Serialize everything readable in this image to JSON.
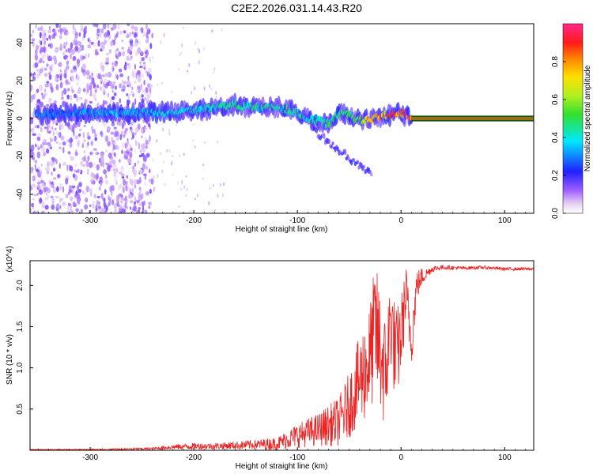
{
  "title": "C2E2.2026.031.14.43.R20",
  "colors": {
    "snr_line": "#ee2222",
    "band_center": "#ff3b1f",
    "band_edge": "#00c400",
    "scatter": "#9a4dff"
  },
  "chart_data": [
    {
      "type": "heatmap",
      "name": "spectrogram",
      "xlabel": "Height of straight line (km)",
      "ylabel": "Frequency (Hz)",
      "xlim": [
        -358,
        128
      ],
      "ylim": [
        -50,
        50
      ],
      "xticks": [
        -300,
        -200,
        -100,
        0,
        100
      ],
      "yticks": [
        -40,
        -20,
        0,
        20,
        40
      ],
      "grid": false,
      "colorbar": {
        "label": "Normalized spectral amplitude",
        "range": [
          0,
          1
        ],
        "ticks": [
          "0.0",
          "0.2",
          "0.4",
          "0.6",
          "0.8"
        ],
        "colormap": "rainbow (white-violet-blue-cyan-green-yellow-orange-red-magenta)"
      },
      "ridge": {
        "x": [
          -350,
          -320,
          -290,
          -260,
          -230,
          -200,
          -180,
          -160,
          -140,
          -120,
          -100,
          -90,
          -80,
          -70,
          -60,
          -50,
          -40,
          -30,
          -20,
          -10,
          0,
          10,
          50,
          100,
          128
        ],
        "frequency": [
          2,
          3,
          3,
          3,
          3,
          4,
          6,
          7,
          6,
          6,
          3,
          0,
          -1,
          -3,
          3,
          2,
          -1,
          0,
          1,
          2,
          3,
          0,
          0,
          0,
          0
        ],
        "amplitude": [
          0.3,
          0.3,
          0.35,
          0.35,
          0.4,
          0.4,
          0.45,
          0.45,
          0.45,
          0.45,
          0.45,
          0.4,
          0.4,
          0.45,
          0.5,
          0.5,
          0.55,
          0.7,
          0.85,
          0.85,
          0.9,
          1.0,
          1.0,
          1.0,
          1.0
        ]
      },
      "noise_region": {
        "x_from": -358,
        "x_to": -240,
        "frequency_range": [
          -50,
          50
        ],
        "amplitude": "low (0.0-0.1)"
      },
      "tone": {
        "x_from": 10,
        "x_to": 128,
        "frequency": 0,
        "amplitude": 1.0
      }
    },
    {
      "type": "line",
      "name": "snr",
      "xlabel": "Height of straight line (km)",
      "ylabel": "SNR (10 * v/v)",
      "y_multiplier": "(x10^4)",
      "xlim": [
        -358,
        128
      ],
      "ylim": [
        0,
        2.3
      ],
      "xticks": [
        -300,
        -200,
        -100,
        0,
        100
      ],
      "yticks": [
        "0.5",
        "1.0",
        "1.5",
        "2.0"
      ],
      "grid": false,
      "series": [
        {
          "name": "SNR",
          "x": [
            -358,
            -320,
            -280,
            -240,
            -220,
            -200,
            -180,
            -160,
            -140,
            -120,
            -100,
            -80,
            -60,
            -50,
            -40,
            -30,
            -25,
            -20,
            -15,
            -10,
            -5,
            0,
            5,
            10,
            15,
            20,
            25,
            30,
            40,
            60,
            80,
            100,
            128
          ],
          "values": [
            0.01,
            0.01,
            0.01,
            0.02,
            0.04,
            0.05,
            0.05,
            0.06,
            0.07,
            0.08,
            0.18,
            0.25,
            0.35,
            0.55,
            0.85,
            1.1,
            1.5,
            1.2,
            0.9,
            1.6,
            1.1,
            1.4,
            1.9,
            1.3,
            2.0,
            2.1,
            2.15,
            2.2,
            2.22,
            2.21,
            2.22,
            2.2,
            2.2
          ],
          "spread": [
            0.005,
            0.005,
            0.01,
            0.015,
            0.03,
            0.04,
            0.04,
            0.05,
            0.06,
            0.08,
            0.15,
            0.2,
            0.3,
            0.4,
            0.55,
            0.7,
            0.8,
            0.8,
            0.7,
            0.6,
            0.6,
            0.5,
            0.35,
            0.3,
            0.2,
            0.12,
            0.06,
            0.04,
            0.03,
            0.02,
            0.02,
            0.02,
            0.02
          ]
        }
      ]
    }
  ]
}
